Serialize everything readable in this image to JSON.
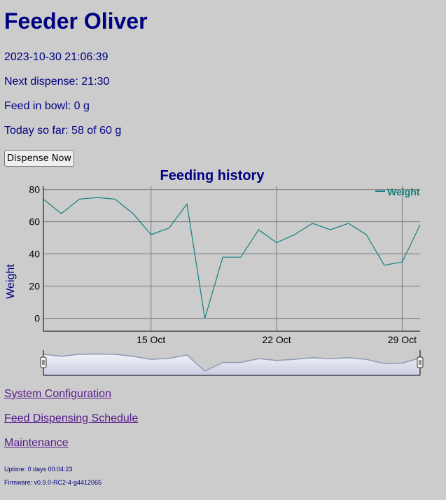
{
  "header": {
    "title": "Feeder Oliver"
  },
  "status": {
    "datetime": "2023-10-30 21:06:39",
    "next_dispense": "Next dispense: 21:30",
    "feed_in_bowl": "Feed in bowl: 0 g",
    "today_so_far": "Today so far: 58 of 60 g"
  },
  "actions": {
    "dispense_now_label": "Dispense Now"
  },
  "chart_data": {
    "type": "line",
    "title": "Feeding history",
    "ylabel": "Weight",
    "xlabel": "",
    "ylim": [
      -8,
      82
    ],
    "y_ticks": [
      0,
      20,
      40,
      60,
      80
    ],
    "x_start": "2023-10-09",
    "x_end": "2023-10-30",
    "x_ticks": [
      {
        "date": "2023-10-15",
        "label": "15 Oct"
      },
      {
        "date": "2023-10-22",
        "label": "22 Oct"
      },
      {
        "date": "2023-10-29",
        "label": "29 Oct"
      }
    ],
    "grid": true,
    "legend": "top-right",
    "colors": {
      "series": "#128080",
      "navigator_fill": "#c8cde0",
      "navigator_line": "#8f98b4"
    },
    "series": [
      {
        "name": "Weight",
        "points": [
          {
            "x": "2023-10-09",
            "y": 74
          },
          {
            "x": "2023-10-10",
            "y": 65
          },
          {
            "x": "2023-10-11",
            "y": 74
          },
          {
            "x": "2023-10-12",
            "y": 75
          },
          {
            "x": "2023-10-13",
            "y": 74
          },
          {
            "x": "2023-10-14",
            "y": 65
          },
          {
            "x": "2023-10-15",
            "y": 52
          },
          {
            "x": "2023-10-16",
            "y": 56
          },
          {
            "x": "2023-10-17",
            "y": 71
          },
          {
            "x": "2023-10-18",
            "y": 0
          },
          {
            "x": "2023-10-19",
            "y": 38
          },
          {
            "x": "2023-10-20",
            "y": 38
          },
          {
            "x": "2023-10-21",
            "y": 55
          },
          {
            "x": "2023-10-22",
            "y": 47
          },
          {
            "x": "2023-10-23",
            "y": 52
          },
          {
            "x": "2023-10-24",
            "y": 59
          },
          {
            "x": "2023-10-25",
            "y": 55
          },
          {
            "x": "2023-10-26",
            "y": 59
          },
          {
            "x": "2023-10-27",
            "y": 52
          },
          {
            "x": "2023-10-28",
            "y": 33
          },
          {
            "x": "2023-10-29",
            "y": 35
          },
          {
            "x": "2023-10-30",
            "y": 58
          }
        ]
      }
    ]
  },
  "links": {
    "system_configuration": "System Configuration",
    "feed_dispensing_schedule": "Feed Dispensing Schedule",
    "maintenance": "Maintenance"
  },
  "footer": {
    "uptime": "Uptime: 0 days 00:04:23",
    "firmware": "Firmware: v0.9.0-RC2-4-g4412065"
  }
}
